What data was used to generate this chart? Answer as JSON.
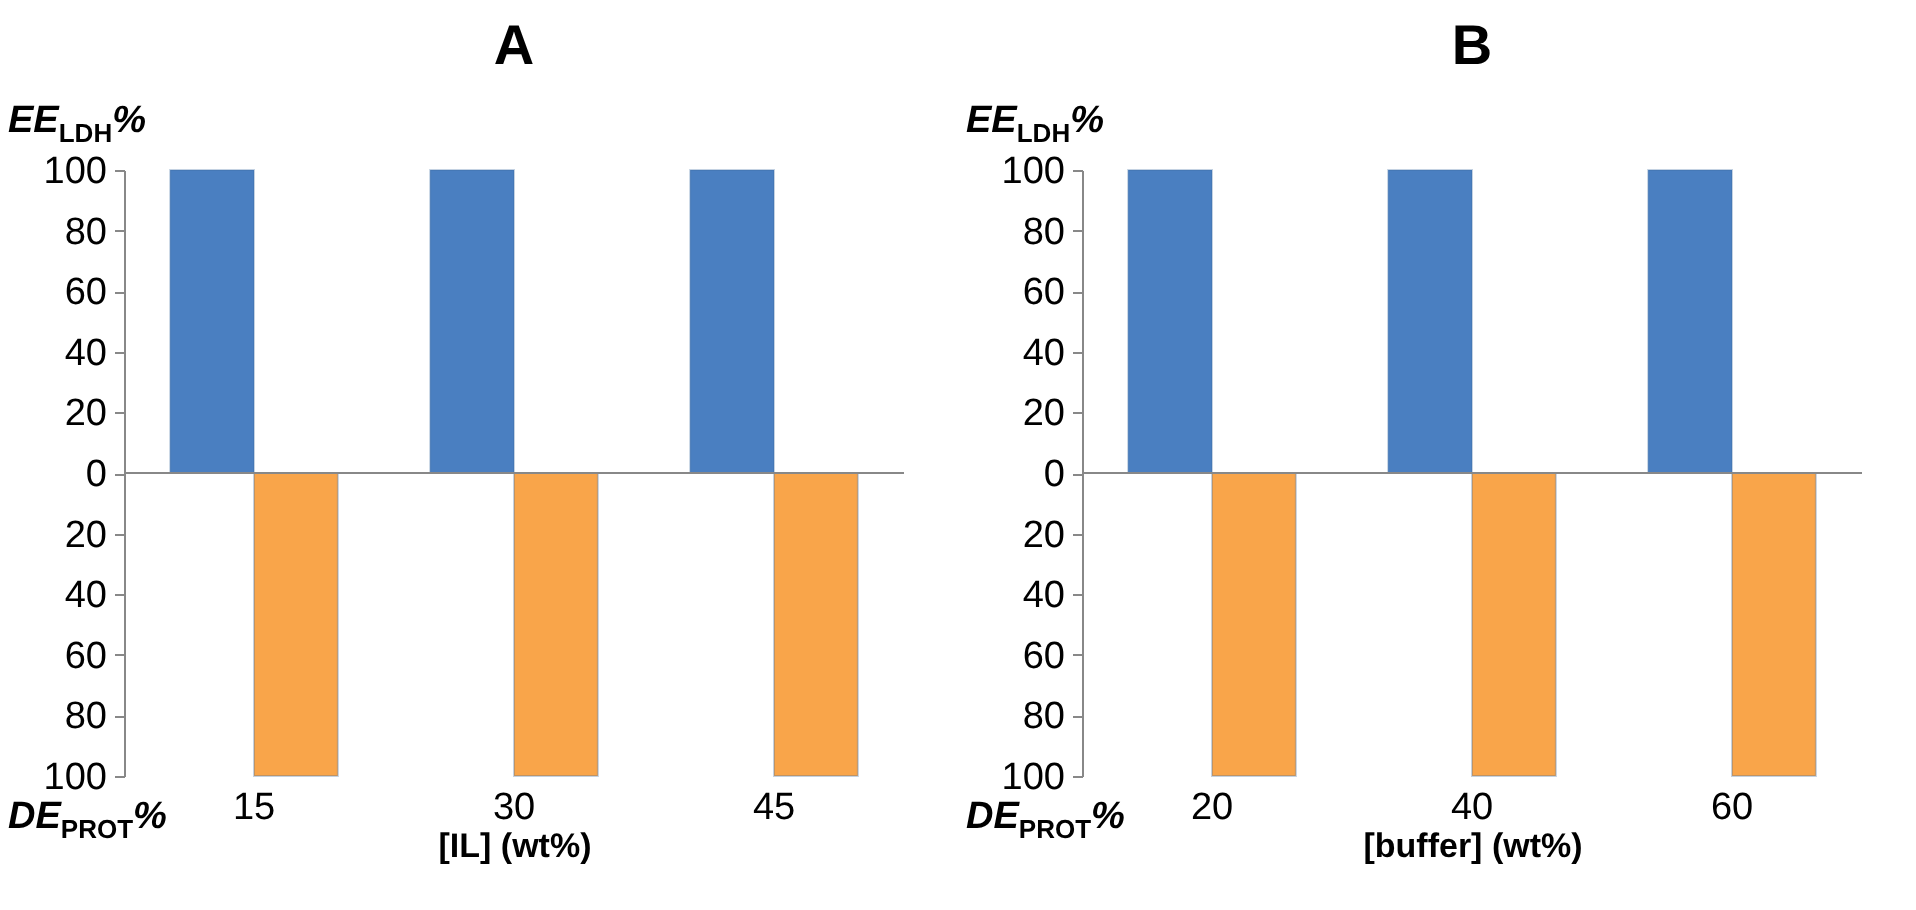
{
  "chart_data": [
    {
      "type": "bar",
      "title": "A",
      "categories": [
        "15",
        "30",
        "45"
      ],
      "xlabel": "[IL] (wt%)",
      "ylabel": "EE$_{LDH}$%",
      "annotations": [
        "DE$_{PROT}$%"
      ],
      "series": [
        {
          "color": "#4a7fc1",
          "values": [
            100,
            100,
            100
          ]
        },
        {
          "color": "#f9a54a",
          "values": [
            -100,
            -100,
            -100
          ]
        }
      ],
      "ylim": [
        -100,
        100
      ],
      "yticks": [
        {
          "value": -100,
          "label": "100"
        },
        {
          "value": -80,
          "label": "80"
        },
        {
          "value": -60,
          "label": "60"
        },
        {
          "value": -40,
          "label": "40"
        },
        {
          "value": -20,
          "label": "20"
        },
        0,
        20,
        40,
        60,
        80,
        100
      ],
      "ref_lines": [
        {
          "axis": "y",
          "value": 0
        }
      ],
      "grid": false
    },
    {
      "type": "bar",
      "title": "B",
      "categories": [
        "20",
        "40",
        "60"
      ],
      "xlabel": "[buffer] (wt%)",
      "ylabel": "EE$_{LDH}$%",
      "annotations": [
        "DE$_{PROT}$%"
      ],
      "series": [
        {
          "color": "#4a7fc1",
          "values": [
            100,
            100,
            100
          ]
        },
        {
          "color": "#f9a54a",
          "values": [
            -100,
            -100,
            -100
          ]
        }
      ],
      "ylim": [
        -100,
        100
      ],
      "yticks": [
        {
          "value": -100,
          "label": "100"
        },
        {
          "value": -80,
          "label": "80"
        },
        {
          "value": -60,
          "label": "60"
        },
        {
          "value": -40,
          "label": "40"
        },
        {
          "value": -20,
          "label": "20"
        },
        0,
        20,
        40,
        60,
        80,
        100
      ],
      "ref_lines": [
        {
          "axis": "y",
          "value": 0
        }
      ],
      "grid": false
    }
  ]
}
